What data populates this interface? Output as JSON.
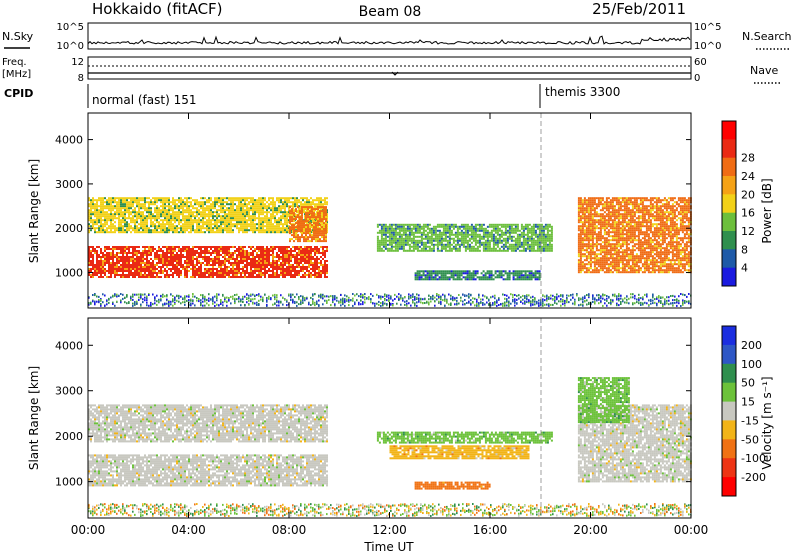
{
  "header": {
    "title": "Hokkaido (fitACF)",
    "beam": "Beam 08",
    "date": "25/Feb/2011"
  },
  "top_panel": {
    "left_label": "N.Sky",
    "left_ticks": [
      "10^5",
      "10^0"
    ],
    "right_label": "N.Search",
    "right_ticks": [
      "10^5",
      "10^0"
    ]
  },
  "freq_panel": {
    "left_label_1": "Freq.",
    "left_label_2": "[MHz]",
    "left_ticks": [
      "12",
      "8"
    ],
    "right_label": "Nave",
    "right_ticks": [
      "60",
      "0"
    ]
  },
  "cpid_panel": {
    "label": "CPID",
    "modes": [
      "normal (fast) 151",
      "themis 3300"
    ]
  },
  "colors": {
    "power": [
      "#1b1be0",
      "#1e5aa8",
      "#2f8f4e",
      "#6cbf3c",
      "#f2d118",
      "#f5a216",
      "#f06c14",
      "#ea2a14",
      "#ff0000"
    ],
    "velocity": [
      "#1b2ee0",
      "#2e57c6",
      "#2f8f4e",
      "#6cc23a",
      "#c8c8c0",
      "#f2b418",
      "#f07214",
      "#ee3414",
      "#ff0000"
    ]
  },
  "chart_data": [
    {
      "type": "heatmap",
      "name": "power",
      "xlabel": "",
      "ylabel": "Slant Range [km]",
      "x_ticks": [
        "00:00",
        "04:00",
        "08:00",
        "12:00",
        "16:00",
        "20:00",
        "00:00"
      ],
      "y_ticks": [
        1000,
        2000,
        3000,
        4000
      ],
      "ylim": [
        200,
        4600
      ],
      "colorbar": {
        "label": "Power [dB]",
        "ticks": [
          4,
          8,
          12,
          16,
          20,
          24,
          28
        ]
      },
      "features": [
        {
          "t_start": "00:00",
          "t_end": "09:30",
          "range_km": [
            900,
            1600
          ],
          "value": 28
        },
        {
          "t_start": "00:00",
          "t_end": "09:30",
          "range_km": [
            1900,
            2700
          ],
          "value": 16
        },
        {
          "t_start": "08:00",
          "t_end": "09:30",
          "range_km": [
            1700,
            2500
          ],
          "value": 24
        },
        {
          "t_start": "11:30",
          "t_end": "18:30",
          "range_km": [
            1500,
            2100
          ],
          "value": 12
        },
        {
          "t_start": "13:00",
          "t_end": "18:00",
          "range_km": [
            850,
            1050
          ],
          "value": 8
        },
        {
          "t_start": "19:30",
          "t_end": "24:00",
          "range_km": [
            1000,
            2700
          ],
          "value": 24
        }
      ]
    },
    {
      "type": "heatmap",
      "name": "velocity",
      "xlabel": "Time UT",
      "ylabel": "Slant Range [km]",
      "x_ticks": [
        "00:00",
        "04:00",
        "08:00",
        "12:00",
        "16:00",
        "20:00",
        "00:00"
      ],
      "y_ticks": [
        1000,
        2000,
        3000,
        4000
      ],
      "ylim": [
        200,
        4600
      ],
      "colorbar": {
        "label": "Velocity [m s⁻¹]",
        "ticks": [
          200,
          100,
          50,
          15,
          -15,
          -50,
          -100,
          -200
        ]
      },
      "features": [
        {
          "t_start": "00:00",
          "t_end": "09:30",
          "range_km": [
            900,
            1600
          ],
          "value": 0
        },
        {
          "t_start": "00:00",
          "t_end": "09:30",
          "range_km": [
            1900,
            2700
          ],
          "value": 0
        },
        {
          "t_start": "12:00",
          "t_end": "17:30",
          "range_km": [
            1500,
            1800
          ],
          "value": -40
        },
        {
          "t_start": "11:30",
          "t_end": "18:30",
          "range_km": [
            1850,
            2100
          ],
          "value": 30
        },
        {
          "t_start": "13:00",
          "t_end": "16:00",
          "range_km": [
            850,
            1000
          ],
          "value": -60
        },
        {
          "t_start": "19:30",
          "t_end": "24:00",
          "range_km": [
            1000,
            2700
          ],
          "value": 0
        },
        {
          "t_start": "19:30",
          "t_end": "21:30",
          "range_km": [
            2300,
            3300
          ],
          "value": 30
        }
      ]
    }
  ]
}
